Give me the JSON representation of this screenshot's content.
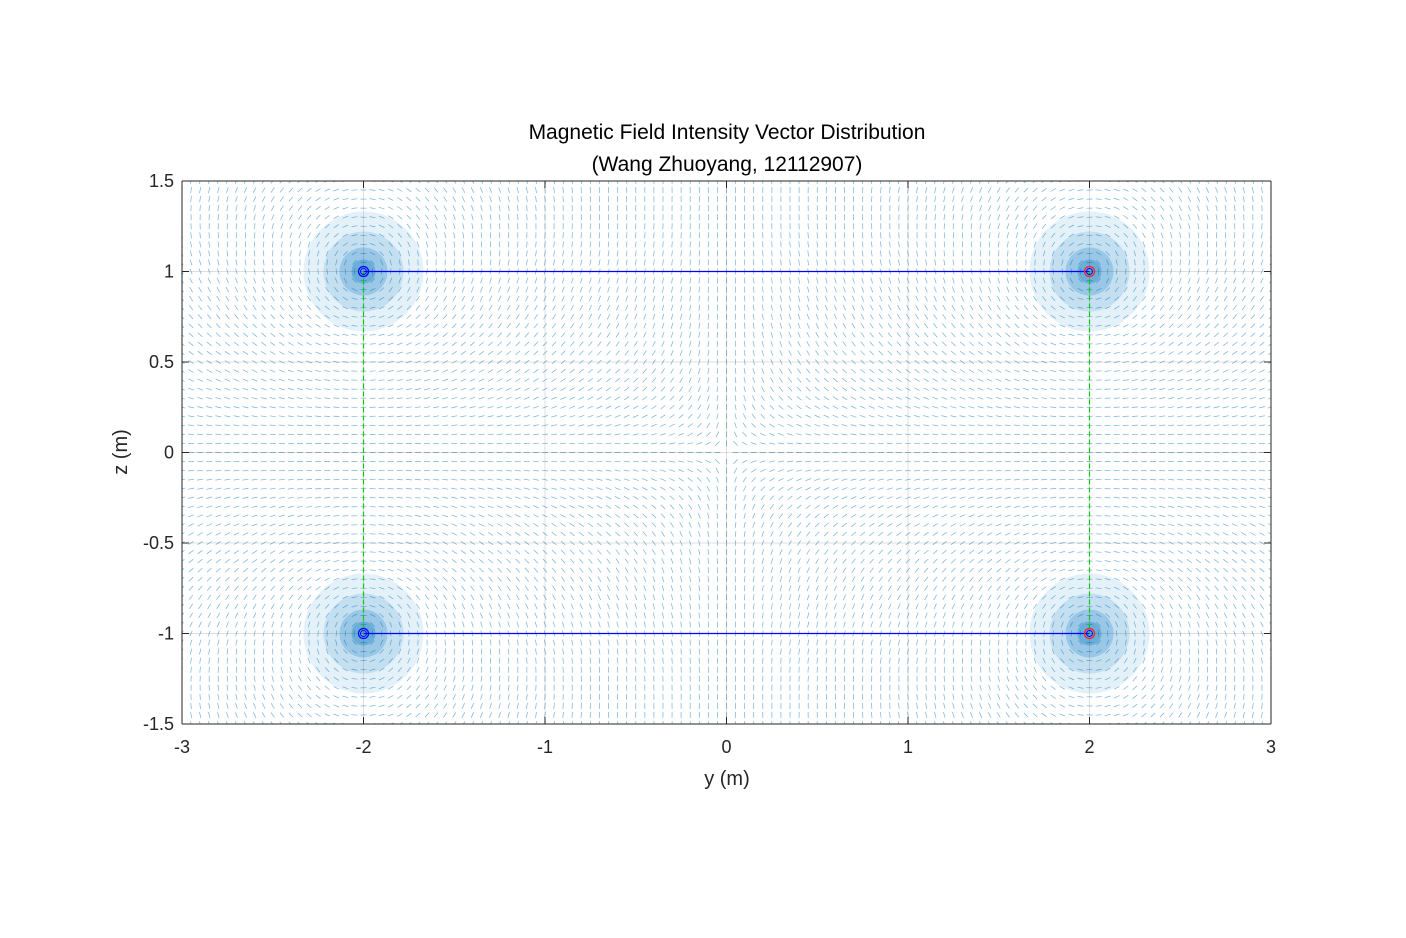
{
  "chart_data": {
    "type": "quiver",
    "title": "Magnetic Field Intensity Vector Distribution",
    "subtitle": "(Wang Zhuoyang, 12112907)",
    "xlabel": "y (m)",
    "ylabel": "z (m)",
    "xlim": [
      -3,
      3
    ],
    "ylim": [
      -1.5,
      1.5
    ],
    "xticks": [
      -3,
      -2,
      -1,
      0,
      1,
      2,
      3
    ],
    "xtick_labels": [
      "-3",
      "-2",
      "-1",
      "0",
      "1",
      "2",
      "3"
    ],
    "yticks": [
      1.5,
      1,
      0.5,
      0,
      -0.5,
      -1,
      -1.5
    ],
    "ytick_labels": [
      "1.5",
      "1",
      "0.5",
      "0",
      "-0.5",
      "-1",
      "-1.5"
    ],
    "grid": true,
    "vector_color": "#0072BD",
    "conductors": [
      {
        "y": -2,
        "z": 1
      },
      {
        "y": -2,
        "z": -1
      },
      {
        "y": 2,
        "z": 1
      },
      {
        "y": 2,
        "z": -1
      }
    ],
    "conductor_marker_colors": [
      "#0000ff",
      "#0000ff",
      "#ff2020",
      "#ff2020"
    ],
    "horizontal_wires": [
      {
        "y": [
          -2,
          2
        ],
        "z": [
          1,
          1
        ]
      },
      {
        "y": [
          -2,
          2
        ],
        "z": [
          -1,
          -1
        ]
      }
    ],
    "horizontal_wire_color": "#0000ff",
    "vertical_wires": [
      {
        "y": [
          -2,
          -2
        ],
        "z": [
          1,
          -1
        ]
      },
      {
        "y": [
          2,
          2
        ],
        "z": [
          1,
          -1
        ]
      }
    ],
    "vertical_wire_color": "#00cc00",
    "vertical_wire_style": "dashed"
  }
}
